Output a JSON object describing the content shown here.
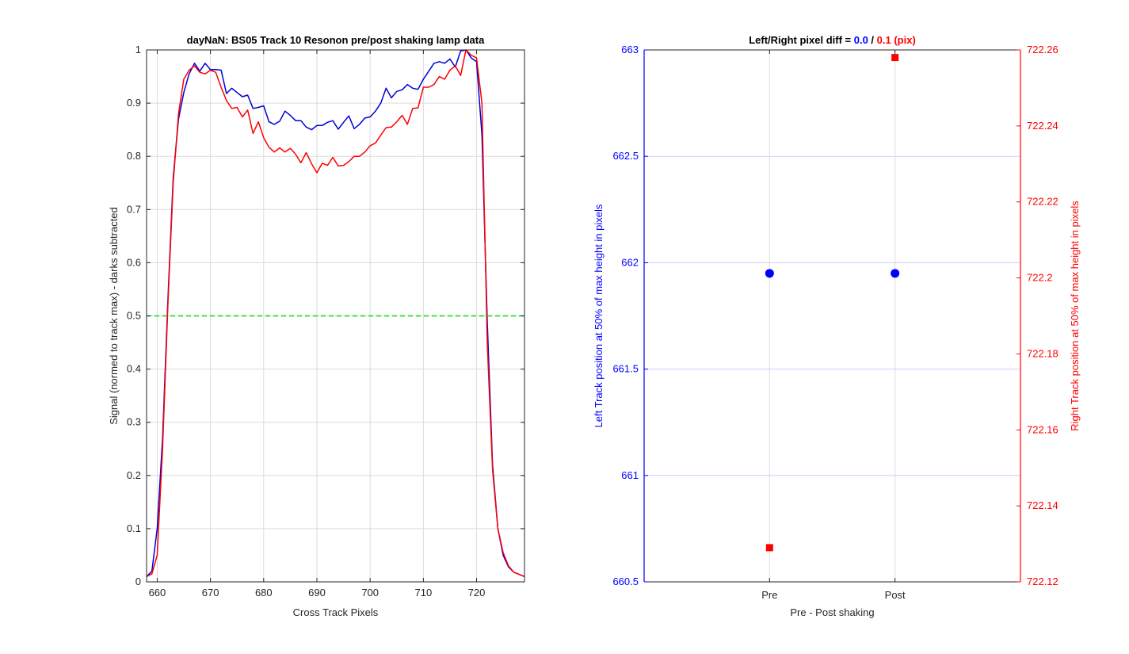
{
  "chart_data": [
    {
      "type": "line",
      "title": "dayNaN: BS05  Track 10 Resonon pre/post shaking lamp data",
      "xlabel": "Cross Track Pixels",
      "ylabel": "Signal (normed to track max) - darks subtracted",
      "xlim": [
        658,
        729
      ],
      "ylim": [
        0,
        1
      ],
      "xticks": [
        660,
        670,
        680,
        690,
        700,
        710,
        720
      ],
      "yticks": [
        0,
        0.1,
        0.2,
        0.3,
        0.4,
        0.5,
        0.6,
        0.7,
        0.8,
        0.9,
        1
      ],
      "yticklabels": [
        "0",
        "0.1",
        "0.2",
        "0.3",
        "0.4",
        "0.5",
        "0.6",
        "0.7",
        "0.8",
        "0.9",
        "1"
      ],
      "grid": true,
      "x": [
        658,
        659,
        660,
        661,
        662,
        663,
        664,
        665,
        666,
        667,
        668,
        669,
        670,
        671,
        672,
        673,
        674,
        675,
        676,
        677,
        678,
        679,
        680,
        681,
        682,
        683,
        684,
        685,
        686,
        687,
        688,
        689,
        690,
        691,
        692,
        693,
        694,
        695,
        696,
        697,
        698,
        699,
        700,
        701,
        702,
        703,
        704,
        705,
        706,
        707,
        708,
        709,
        710,
        711,
        712,
        713,
        714,
        715,
        716,
        717,
        718,
        719,
        720,
        721,
        722,
        723,
        724,
        725,
        726,
        727,
        728,
        729
      ],
      "series": [
        {
          "color": "#0000d6",
          "values": [
            0.01,
            0.02,
            0.1,
            0.27,
            0.53,
            0.76,
            0.87,
            0.92,
            0.955,
            0.975,
            0.96,
            0.975,
            0.963,
            0.963,
            0.962,
            0.918,
            0.928,
            0.92,
            0.912,
            0.915,
            0.89,
            0.892,
            0.895,
            0.865,
            0.86,
            0.866,
            0.885,
            0.877,
            0.867,
            0.867,
            0.855,
            0.85,
            0.858,
            0.858,
            0.864,
            0.867,
            0.851,
            0.864,
            0.876,
            0.852,
            0.86,
            0.872,
            0.874,
            0.885,
            0.9,
            0.928,
            0.91,
            0.922,
            0.925,
            0.935,
            0.928,
            0.926,
            0.945,
            0.96,
            0.975,
            0.978,
            0.975,
            0.983,
            0.968,
            0.998,
            1.0,
            0.985,
            0.978,
            0.84,
            0.49,
            0.22,
            0.1,
            0.05,
            0.028,
            0.018,
            0.014,
            0.01
          ]
        },
        {
          "color": "#ff0000",
          "values": [
            0.01,
            0.015,
            0.05,
            0.25,
            0.52,
            0.75,
            0.88,
            0.945,
            0.962,
            0.97,
            0.958,
            0.955,
            0.962,
            0.958,
            0.93,
            0.905,
            0.89,
            0.892,
            0.874,
            0.887,
            0.843,
            0.865,
            0.835,
            0.817,
            0.808,
            0.816,
            0.808,
            0.815,
            0.804,
            0.788,
            0.807,
            0.786,
            0.769,
            0.787,
            0.783,
            0.798,
            0.782,
            0.783,
            0.79,
            0.8,
            0.8,
            0.808,
            0.82,
            0.825,
            0.84,
            0.854,
            0.855,
            0.865,
            0.877,
            0.86,
            0.89,
            0.891,
            0.93,
            0.93,
            0.935,
            0.95,
            0.945,
            0.962,
            0.97,
            0.952,
            1.0,
            0.99,
            0.985,
            0.9,
            0.45,
            0.21,
            0.1,
            0.055,
            0.03,
            0.018,
            0.014,
            0.01
          ]
        },
        {
          "color": "#00dd00",
          "style": "dashed",
          "values_constant": 0.5
        }
      ]
    },
    {
      "type": "scatter",
      "title_parts": [
        {
          "text": "Left/Right pixel diff = ",
          "color": "#000000"
        },
        {
          "text": "0.0",
          "color": "#0000ff"
        },
        {
          "text": " / ",
          "color": "#000000"
        },
        {
          "text": "0.1 (pix)",
          "color": "#ff0000"
        }
      ],
      "xlabel": "Pre - Post shaking",
      "categories": [
        "Pre",
        "Post"
      ],
      "y_left": {
        "label": "Left Track position at 50% of max height in pixels",
        "color": "#0000ff",
        "lim": [
          660.5,
          663
        ],
        "ticks": [
          660.5,
          661,
          661.5,
          662,
          662.5,
          663
        ],
        "ticklabels": [
          "660.5",
          "661",
          "661.5",
          "662",
          "662.5",
          "663"
        ]
      },
      "y_right": {
        "label": "Right Track position at 50% of max height in pixels",
        "color": "#ff0000",
        "lim": [
          722.12,
          722.26
        ],
        "ticks": [
          722.12,
          722.14,
          722.16,
          722.18,
          722.2,
          722.22,
          722.24,
          722.26
        ],
        "ticklabels": [
          "722.12",
          "722.14",
          "722.16",
          "722.18",
          "722.2",
          "722.22",
          "722.24",
          "722.26"
        ]
      },
      "grid": true,
      "series": [
        {
          "axis": "left",
          "marker": "circle",
          "color": "#0000ff",
          "values": [
            661.95,
            661.95
          ]
        },
        {
          "axis": "right",
          "marker": "square",
          "color": "#ff0000",
          "values": [
            722.129,
            722.258
          ]
        }
      ]
    }
  ]
}
